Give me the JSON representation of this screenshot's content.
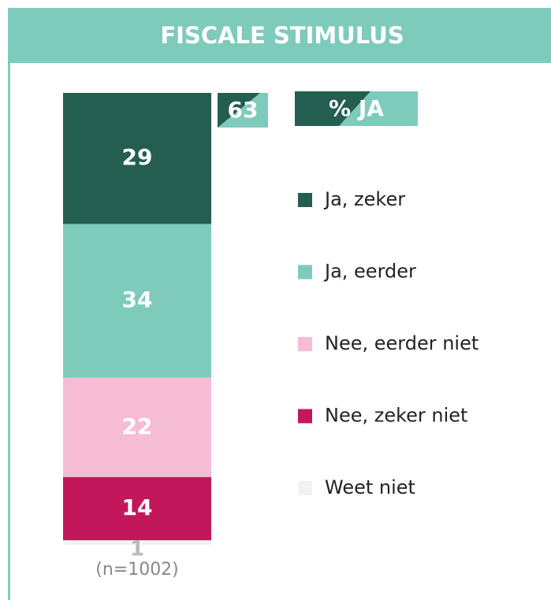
{
  "chart_data": {
    "type": "stacked_bar",
    "title": "FISCALE STIMULUS",
    "categories": [
      "(n=1002)"
    ],
    "series": [
      {
        "name": "Ja, zeker",
        "color": "#245e50",
        "values": [
          29
        ]
      },
      {
        "name": "Ja, eerder",
        "color": "#7ecbbc",
        "values": [
          34
        ]
      },
      {
        "name": "Nee, eerder niet",
        "color": "#f5bcd4",
        "values": [
          22
        ]
      },
      {
        "name": "Nee, zeker niet",
        "color": "#c2185b",
        "values": [
          14
        ]
      },
      {
        "name": "Weet niet",
        "color": "#f2f2f2",
        "values": [
          1
        ]
      }
    ],
    "ylim": [
      0,
      100
    ],
    "summary": {
      "label": "% JA",
      "value": 63
    }
  }
}
